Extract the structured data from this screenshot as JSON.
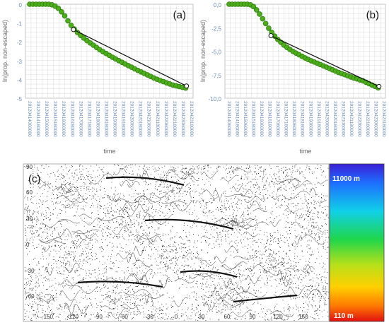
{
  "panel_a": {
    "label": "(a)",
    "ylabel": "ln(prop. non-escaped)",
    "xlabel": "time",
    "ytick_labels": [
      "0",
      "-1",
      "-2",
      "-3",
      "-4",
      "-5"
    ],
    "ylim": [
      -5,
      0
    ],
    "xtick_labels": [
      "20120414060000",
      "20120414180000",
      "20120415060000",
      "20120415180000",
      "20120416060000",
      "20120416180000",
      "20120417060000",
      "20120417180000",
      "20120418060000",
      "20120418180000",
      "20120419060000",
      "20120419180000",
      "20120420060000",
      "20120420180000",
      "20120421060000",
      "20120421180000",
      "20120422060000",
      "20120422180000",
      "20120423060000",
      "20120423180000"
    ],
    "fit_start": [
      0.275,
      -1.35
    ],
    "fit_end": [
      0.985,
      -4.35
    ]
  },
  "panel_b": {
    "label": "(b)",
    "ylabel": "ln(prop. non-escaped)",
    "xlabel": "time",
    "ytick_labels": [
      "0,0",
      "-2,5",
      "-5,0",
      "-7,5",
      "-10,0"
    ],
    "ylim": [
      -10,
      0
    ],
    "xtick_labels": [
      "20120414060000",
      "20120414180000",
      "20120415060000",
      "20120415180000",
      "20120416060000",
      "20120416180000",
      "20120417060000",
      "20120417180000",
      "20120418060000",
      "20120418180000",
      "20120419060000",
      "20120419180000",
      "20120420060000",
      "20120420180000",
      "20120421060000",
      "20120421180000",
      "20120422060000",
      "20120422180000",
      "20120423060000",
      "20120423180000"
    ],
    "fit_start": [
      0.275,
      -3.35
    ],
    "fit_end": [
      0.985,
      -8.75
    ]
  },
  "panel_c": {
    "label": "(c)",
    "ytick_labels": [
      "90",
      "60",
      "30",
      "0",
      "-30",
      "-60"
    ],
    "xtick_labels": [
      "-150",
      "-120",
      "-90",
      "-60",
      "-30",
      "0",
      "30",
      "60",
      "90",
      "120",
      "150"
    ],
    "colorbar_max": "11000 m",
    "colorbar_min": "110 m"
  },
  "chart_data": [
    {
      "type": "scatter",
      "panel": "(a)",
      "xlabel": "time",
      "ylabel": "ln(prop. non-escaped)",
      "ylim": [
        -5,
        0
      ],
      "series": [
        {
          "values_x_fraction": [
            0.0,
            0.02,
            0.04,
            0.06,
            0.08,
            0.1,
            0.12,
            0.14,
            0.16,
            0.18,
            0.2,
            0.22,
            0.24,
            0.26,
            0.28,
            0.3,
            0.32,
            0.34,
            0.36,
            0.38,
            0.4,
            0.42,
            0.44,
            0.46,
            0.48,
            0.5,
            0.52,
            0.54,
            0.56,
            0.58,
            0.6,
            0.62,
            0.64,
            0.66,
            0.68,
            0.7,
            0.72,
            0.74,
            0.76,
            0.78,
            0.8,
            0.82,
            0.84,
            0.86,
            0.88,
            0.9,
            0.92,
            0.94,
            0.96,
            0.98
          ],
          "values": [
            0,
            0,
            0,
            0,
            0,
            0,
            0,
            -0.03,
            -0.1,
            -0.22,
            -0.4,
            -0.62,
            -0.88,
            -1.12,
            -1.32,
            -1.5,
            -1.66,
            -1.8,
            -1.94,
            -2.06,
            -2.18,
            -2.3,
            -2.42,
            -2.52,
            -2.62,
            -2.72,
            -2.82,
            -2.91,
            -3.0,
            -3.09,
            -3.18,
            -3.27,
            -3.35,
            -3.44,
            -3.52,
            -3.6,
            -3.68,
            -3.76,
            -3.84,
            -3.92,
            -3.99,
            -4.06,
            -4.12,
            -4.18,
            -4.24,
            -4.3,
            -4.34,
            -4.38,
            -4.42,
            -4.46
          ]
        }
      ]
    },
    {
      "type": "scatter",
      "panel": "(b)",
      "xlabel": "time",
      "ylabel": "ln(prop. non-escaped)",
      "ylim": [
        -10,
        0
      ],
      "series": [
        {
          "values_x_fraction": [
            0.0,
            0.02,
            0.04,
            0.06,
            0.08,
            0.1,
            0.12,
            0.14,
            0.16,
            0.18,
            0.2,
            0.22,
            0.24,
            0.26,
            0.28,
            0.3,
            0.32,
            0.34,
            0.36,
            0.38,
            0.4,
            0.42,
            0.44,
            0.46,
            0.48,
            0.5,
            0.52,
            0.54,
            0.56,
            0.58,
            0.6,
            0.62,
            0.64,
            0.66,
            0.68,
            0.7,
            0.72,
            0.74,
            0.76,
            0.78,
            0.8,
            0.82,
            0.84,
            0.86,
            0.88,
            0.9,
            0.92,
            0.94,
            0.96,
            0.98
          ],
          "values": [
            0,
            0,
            0,
            0,
            0,
            0,
            0,
            -0.06,
            -0.25,
            -0.6,
            -1.05,
            -1.55,
            -2.05,
            -2.55,
            -3.0,
            -3.4,
            -3.75,
            -4.05,
            -4.35,
            -4.6,
            -4.82,
            -5.02,
            -5.2,
            -5.38,
            -5.55,
            -5.72,
            -5.88,
            -6.02,
            -6.15,
            -6.28,
            -6.42,
            -6.56,
            -6.7,
            -6.84,
            -6.98,
            -7.12,
            -7.26,
            -7.38,
            -7.5,
            -7.62,
            -7.74,
            -7.85,
            -7.95,
            -8.05,
            -8.15,
            -8.3,
            -8.45,
            -8.6,
            -8.75,
            -8.9
          ]
        }
      ]
    }
  ],
  "colors": {
    "marker_fill": "#4caf1a",
    "marker_edge": "#2e7d0e",
    "fit_line": "#111111",
    "grid": "#d9d9d9",
    "frame": "#888888"
  }
}
